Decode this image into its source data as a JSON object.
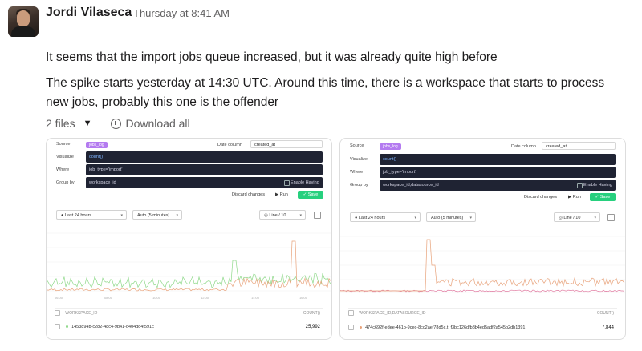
{
  "author": {
    "name": "Jordi Vilaseca",
    "time": "Thursday at 8:41 AM"
  },
  "message": {
    "line1": "It seems that the import jobs queue increased, but it was already quite high before",
    "line2": "The spike starts yesterday at 14:30 UTC. Around this time, there is a workspace that starts to process",
    "line3": "new jobs, probably this one is the offender"
  },
  "files": {
    "count": "2 files",
    "download_label": "Download all"
  },
  "colors": {
    "accent_purple": "#b47bf0",
    "save_green": "#27d07e",
    "line_green": "#8fd98a",
    "line_orange": "#e8a27a",
    "dark_panel": "#1f2333"
  },
  "cards": [
    {
      "source_label": "Source",
      "source_pill": "jobs_log",
      "date_column_label": "Date column",
      "date_column_value": "created_at",
      "visualize_label": "Visualize",
      "visualize_value": "count()",
      "where_label": "Where",
      "where_value": "job_type='import'",
      "groupby_label": "Group by",
      "groupby_value": "workspace_id",
      "enable_having": "Enable Having",
      "discard": "Discard changes",
      "run": "Run",
      "save": "Save",
      "range": "Last 24 hours",
      "granularity": "Auto (5 minutes)",
      "chart_type": "Line / 10",
      "column_header": "WORKSPACE_ID",
      "count_header": "COUNT()",
      "row_id": "1453894b-c282-48c4-9b41-d404dd4f591c",
      "row_value": "25,992"
    },
    {
      "source_label": "Source",
      "source_pill": "jobs_log",
      "date_column_label": "Date column",
      "date_column_value": "created_at",
      "visualize_label": "Visualize",
      "visualize_value": "count()",
      "where_label": "Where",
      "where_value": "job_type='import'",
      "groupby_label": "Group by",
      "groupby_value": "workspace_id,datasource_id",
      "enable_having": "Enable Having",
      "discard": "Discard changes",
      "run": "Run",
      "save": "Save",
      "range": "Last 24 hours",
      "granularity": "Auto (5 minutes)",
      "chart_type": "Line / 10",
      "column_header": "WORKSPACE_ID,DATASOURCE_ID",
      "count_header": "COUNT()",
      "row_id": "474c692f-edee-461b-9cec-8cc2aef78d5c,t_f3bc126dfb8b4ed5adf2a545b2db1391",
      "row_value": "7,844"
    }
  ]
}
